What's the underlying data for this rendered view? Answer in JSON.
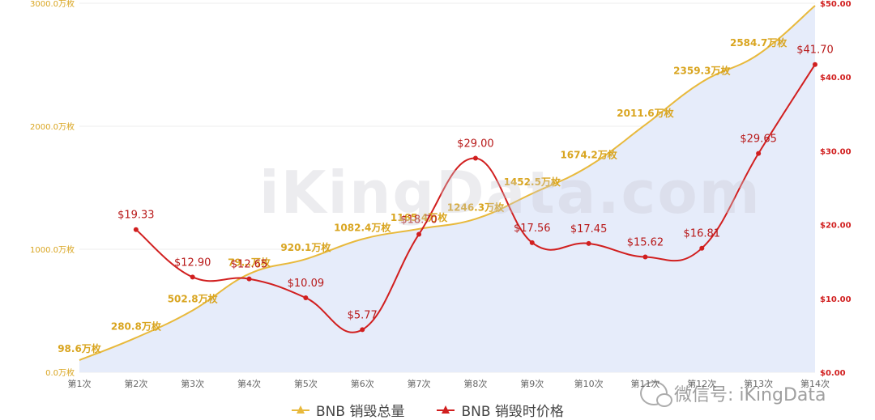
{
  "watermark": "iKingData.com",
  "wechat_text": "微信号: iKingData",
  "colors": {
    "total": "#e8b93c",
    "total_label": "#d9a520",
    "area_fill": "#e6ecfa",
    "price": "#d11f1f",
    "grid": "#ececec",
    "xtick": "#666666"
  },
  "chart_data": {
    "type": "line",
    "categories": [
      "第1次",
      "第2次",
      "第3次",
      "第4次",
      "第5次",
      "第6次",
      "第7次",
      "第8次",
      "第9次",
      "第10次",
      "第11次",
      "第12次",
      "第13次",
      "第14次"
    ],
    "y_left": {
      "ylim": [
        0,
        3000
      ],
      "ticks": [
        0,
        1000,
        2000,
        3000
      ],
      "tick_labels": [
        "0.0万枚",
        "1000.0万枚",
        "2000.0万枚",
        "3000.0万枚"
      ]
    },
    "y_right": {
      "ylim": [
        0,
        50
      ],
      "ticks": [
        0,
        10,
        20,
        30,
        40,
        50
      ],
      "tick_labels": [
        "$0.00",
        "$10.00",
        "$20.00",
        "$30.00",
        "$40.00",
        "$50.00"
      ]
    },
    "series": [
      {
        "name": "BNB 销毁总量",
        "axis": "left",
        "style": "area",
        "values": [
          98.6,
          280.8,
          502.8,
          799.7,
          920.1,
          1082.4,
          1165.4,
          1246.3,
          1452.5,
          1674.2,
          2011.6,
          2359.3,
          2584.7,
          2980
        ],
        "labels": [
          "98.6万枚",
          "280.8万枚",
          "502.8万枚",
          "79…万枚",
          "920.1万枚",
          "1082.4万枚",
          "1165.4万枚",
          "1246.3万枚",
          "1452.5万枚",
          "1674.2万枚",
          "2011.6万枚",
          "2359.3万枚",
          "2584.7万枚",
          ""
        ]
      },
      {
        "name": "BNB 销毁时价格",
        "axis": "right",
        "style": "line",
        "values": [
          null,
          19.33,
          12.9,
          12.65,
          10.09,
          5.77,
          18.7,
          29.0,
          17.56,
          17.45,
          15.62,
          16.81,
          29.65,
          41.7
        ],
        "labels": [
          "",
          "$19.33",
          "$12.90",
          "$12.65",
          "$10.09",
          "$5.77",
          "$18.70",
          "$29.00",
          "$17.56",
          "$17.45",
          "$15.62",
          "$16.81",
          "$29.65",
          "$41.70"
        ]
      }
    ],
    "legend": [
      "BNB 销毁总量",
      "BNB 销毁时价格"
    ],
    "legend_position": "bottom"
  }
}
